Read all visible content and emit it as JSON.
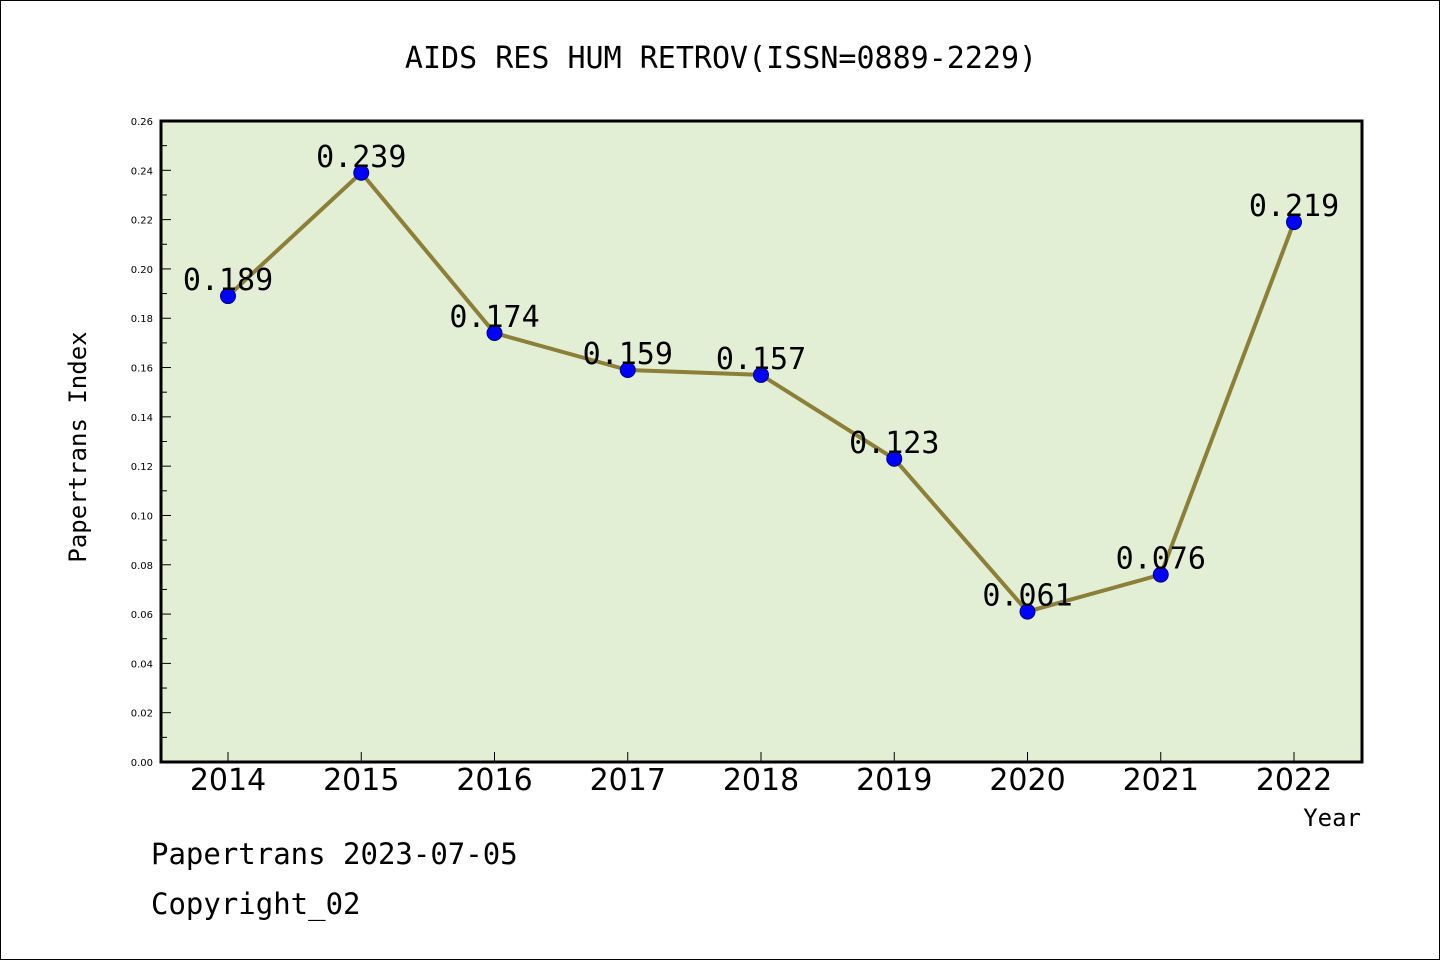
{
  "footer": {
    "line1": "Papertrans 2023-07-05",
    "line2": "Copyright_02"
  },
  "colors": {
    "plot_background": "#e2efd5",
    "line": "#8c7f38",
    "marker": "#0000ff",
    "marker_edge": "#00007a"
  },
  "chart_data": {
    "type": "line",
    "title": "AIDS RES HUM RETROV(ISSN=0889-2229)",
    "xlabel": "Year",
    "ylabel": "Papertrans Index",
    "categories": [
      "2014",
      "2015",
      "2016",
      "2017",
      "2018",
      "2019",
      "2020",
      "2021",
      "2022"
    ],
    "series": [
      {
        "values": [
          0.189,
          0.239,
          0.174,
          0.159,
          0.157,
          0.123,
          0.061,
          0.076,
          0.219
        ],
        "labels": [
          "0.189",
          "0.239",
          "0.174",
          "0.159",
          "0.157",
          "0.123",
          "0.061",
          "0.076",
          "0.219"
        ]
      }
    ],
    "ylim": [
      0,
      0.26
    ],
    "yticks": [
      "0.00",
      "0.02",
      "0.04",
      "0.06",
      "0.08",
      "0.10",
      "0.12",
      "0.14",
      "0.16",
      "0.18",
      "0.20",
      "0.22",
      "0.24",
      "0.26"
    ],
    "grid": false,
    "legend": "none"
  }
}
